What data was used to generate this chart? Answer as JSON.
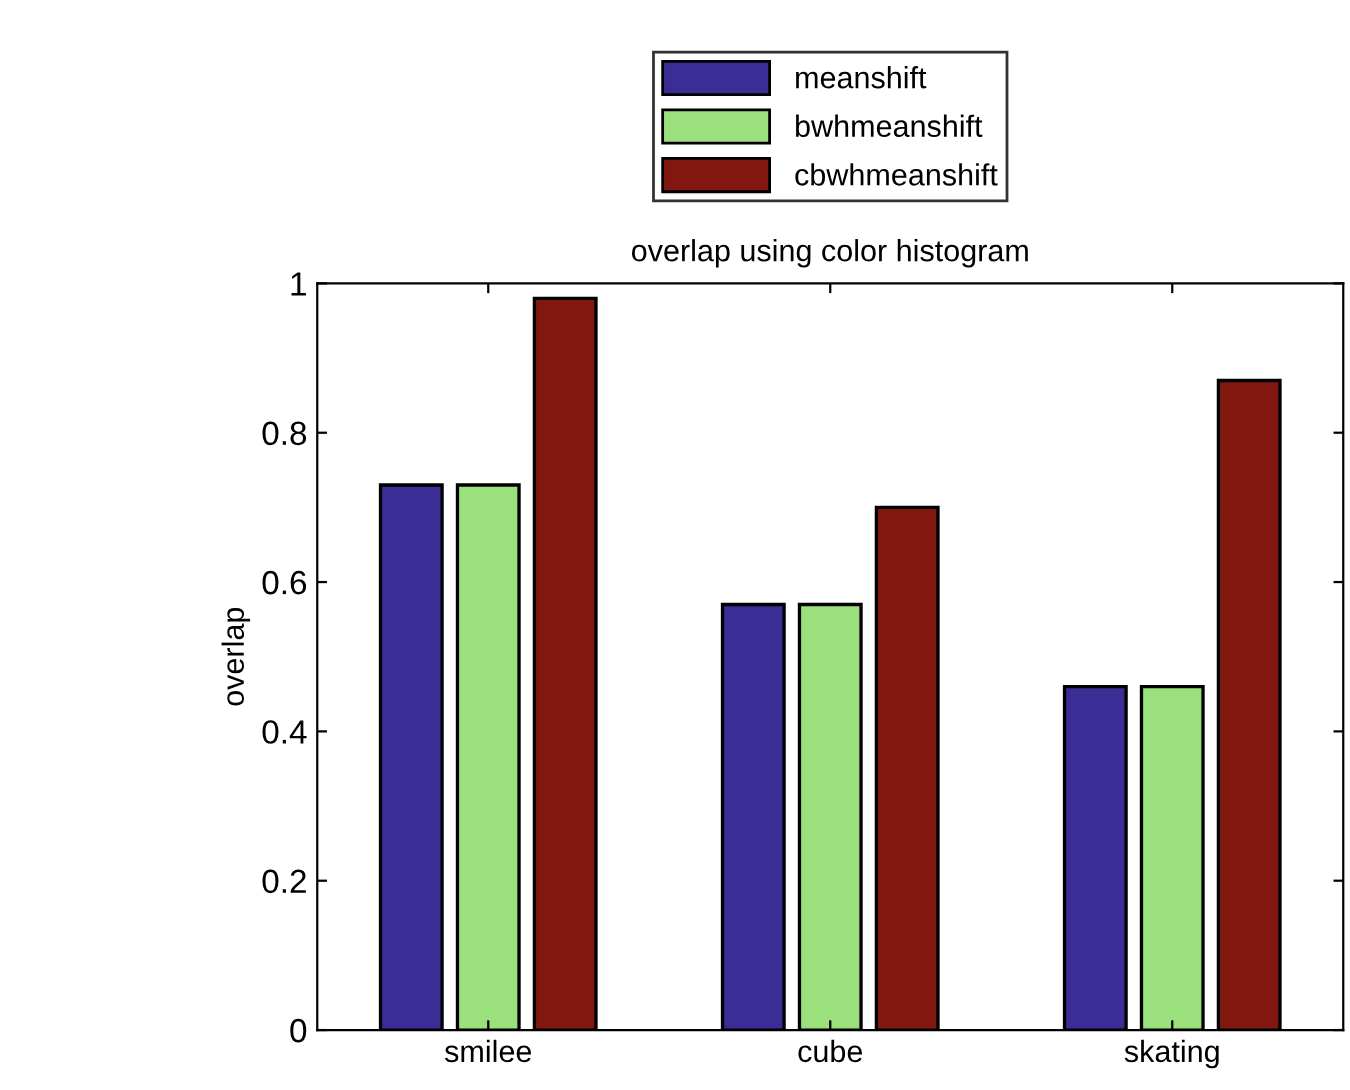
{
  "chart_data": {
    "type": "bar",
    "title": "overlap using color histogram",
    "ylabel": "overlap",
    "categories": [
      "smilee",
      "cube",
      "skating"
    ],
    "series": [
      {
        "name": "meanshift",
        "color": "#3b2d96",
        "values": [
          0.73,
          0.57,
          0.46
        ]
      },
      {
        "name": "bwhmeanshift",
        "color": "#9ae07c",
        "values": [
          0.73,
          0.57,
          0.46
        ]
      },
      {
        "name": "cbwhmeanshift",
        "color": "#82170f",
        "values": [
          0.98,
          0.7,
          0.87
        ]
      }
    ],
    "ylim": [
      0,
      1
    ],
    "yticks": [
      0,
      0.2,
      0.4,
      0.6,
      0.8,
      1
    ],
    "grid": false,
    "legend": "top"
  }
}
